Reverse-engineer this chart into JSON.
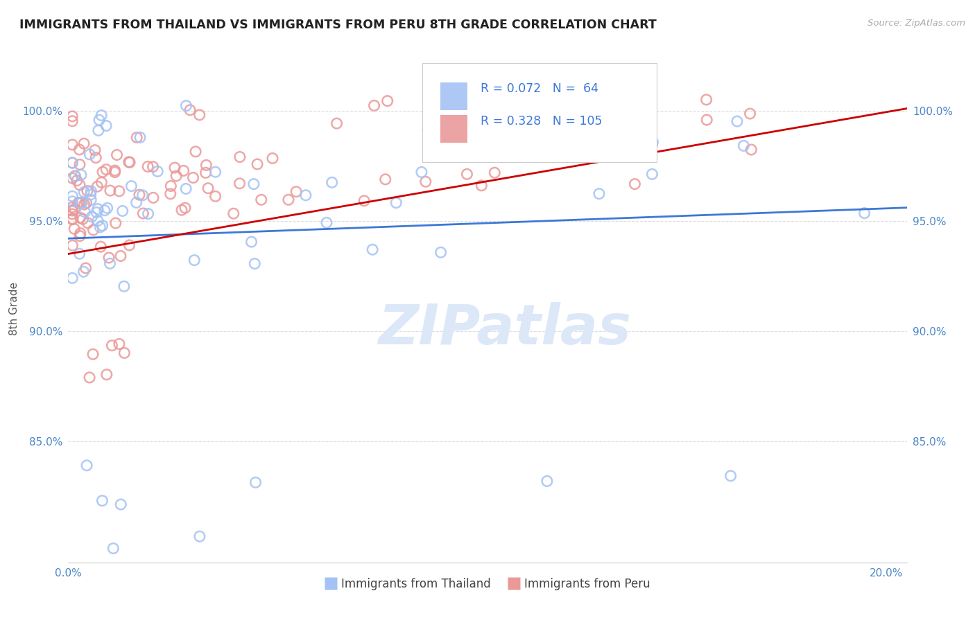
{
  "title": "IMMIGRANTS FROM THAILAND VS IMMIGRANTS FROM PERU 8TH GRADE CORRELATION CHART",
  "source": "Source: ZipAtlas.com",
  "ylabel": "8th Grade",
  "xlim": [
    0.0,
    0.205
  ],
  "ylim": [
    0.795,
    1.025
  ],
  "x_ticks": [
    0.0,
    0.05,
    0.1,
    0.15,
    0.2
  ],
  "x_tick_labels": [
    "0.0%",
    "",
    "",
    "",
    "20.0%"
  ],
  "y_ticks": [
    0.85,
    0.9,
    0.95,
    1.0
  ],
  "y_tick_labels": [
    "85.0%",
    "90.0%",
    "95.0%",
    "100.0%"
  ],
  "R_thailand": 0.072,
  "N_thailand": 64,
  "R_peru": 0.328,
  "N_peru": 105,
  "color_thailand": "#a4c2f4",
  "color_peru": "#ea9999",
  "edge_thailand": "#6d9eeb",
  "edge_peru": "#e06666",
  "line_color_thailand": "#3c78d8",
  "line_color_peru": "#cc0000",
  "tick_color": "#4a86c8",
  "watermark_text": "ZIPatlas",
  "watermark_color": "#dce8f8",
  "legend_R_color": "#3c78d8"
}
